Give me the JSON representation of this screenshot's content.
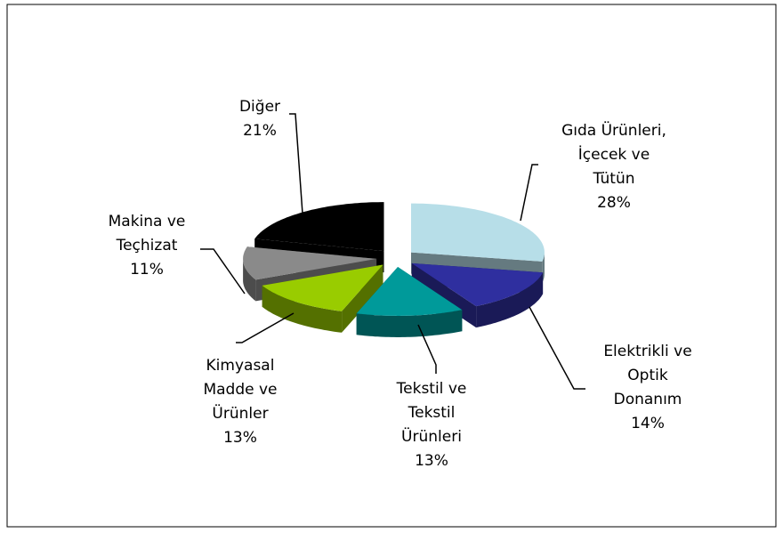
{
  "chart_data": {
    "type": "pie",
    "categories": [
      "Gıda Ürünleri,\nİçecek ve\nTütün",
      "Elektrikli ve\nOptik\nDonanım",
      "Tekstil ve\nTekstil\nÜrünleri",
      "Kimyasal\nMadde ve\nÜrünler",
      "Makina ve\nTeçhizat",
      "Diğer"
    ],
    "values": [
      28,
      14,
      13,
      13,
      11,
      21
    ],
    "value_labels": [
      "28%",
      "14%",
      "13%",
      "13%",
      "11%",
      "21%"
    ],
    "colors": [
      "#b7dee8",
      "#2f2f9f",
      "#009a9a",
      "#99cc00",
      "#8a8a8a",
      "#000000"
    ]
  }
}
